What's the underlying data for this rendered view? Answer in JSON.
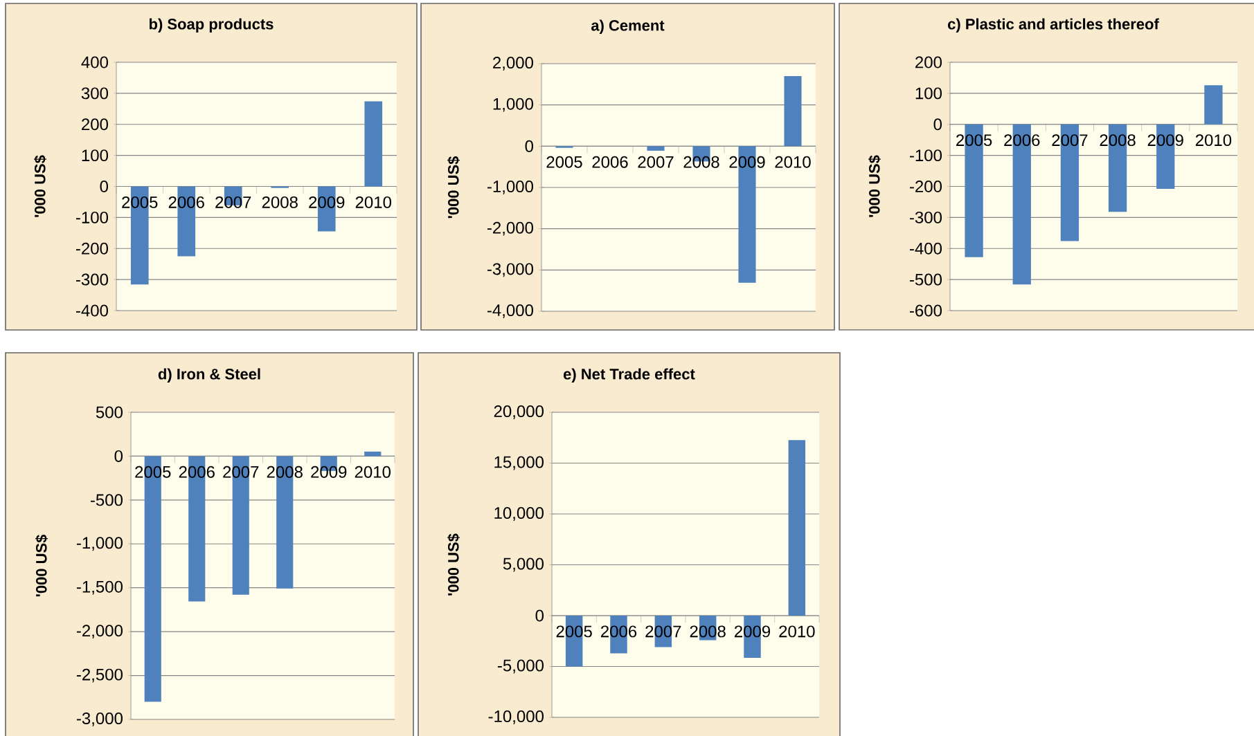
{
  "chart_data": [
    {
      "type": "bar",
      "title": "b) Soap products",
      "ylabel": "'000 US$",
      "categories": [
        "2005",
        "2006",
        "2007",
        "2008",
        "2009",
        "2010"
      ],
      "values": [
        -316,
        -225,
        -61,
        -5,
        -145,
        274
      ],
      "color": "#4f81bd",
      "ylim": [
        -400,
        400
      ],
      "yticks": [
        -400,
        -300,
        -200,
        -100,
        0,
        100,
        200,
        300,
        400
      ],
      "grid": "y"
    },
    {
      "type": "bar",
      "title": "a) Cement",
      "ylabel": "'000 US$",
      "categories": [
        "2005",
        "2006",
        "2007",
        "2008",
        "2009",
        "2010"
      ],
      "values": [
        -40,
        0,
        -110,
        -370,
        -3310,
        1700
      ],
      "color": "#4f81bd",
      "ylim": [
        -4000,
        2000
      ],
      "yticks": [
        {
          "value": -4000,
          "label": "-4,000"
        },
        {
          "value": -3000,
          "label": "-3,000"
        },
        {
          "value": -2000,
          "label": "-2,000"
        },
        {
          "value": -1000,
          "label": "-1,000"
        },
        0,
        {
          "value": 1000,
          "label": "1,000"
        },
        {
          "value": 2000,
          "label": "2,000"
        }
      ],
      "grid": "y"
    },
    {
      "type": "bar",
      "title": "c) Plastic  and articles thereof",
      "ylabel": "'000 US$",
      "categories": [
        "2005",
        "2006",
        "2007",
        "2008",
        "2009",
        "2010"
      ],
      "values": [
        -428,
        -516,
        -376,
        -282,
        -208,
        126
      ],
      "color": "#4f81bd",
      "ylim": [
        -600,
        200
      ],
      "yticks": [
        -600,
        -500,
        -400,
        -300,
        -200,
        -100,
        0,
        100,
        200
      ],
      "grid": "y"
    },
    {
      "type": "bar",
      "title": "d) Iron & Steel",
      "ylabel": "'000 US$",
      "categories": [
        "2005",
        "2006",
        "2007",
        "2008",
        "2009",
        "2010"
      ],
      "values": [
        -2800,
        -1656,
        -1580,
        -1509,
        -169,
        52
      ],
      "color": "#4f81bd",
      "ylim": [
        -3000,
        500
      ],
      "yticks": [
        {
          "value": -3000,
          "label": "-3,000"
        },
        {
          "value": -2500,
          "label": "-2,500"
        },
        {
          "value": -2000,
          "label": "-2,000"
        },
        {
          "value": -1500,
          "label": "-1,500"
        },
        {
          "value": -1000,
          "label": "-1,000"
        },
        -500,
        0,
        500
      ],
      "grid": "y"
    },
    {
      "type": "bar",
      "title": "e) Net Trade effect",
      "ylabel": "'000 US$",
      "categories": [
        "2005",
        "2006",
        "2007",
        "2008",
        "2009",
        "2010"
      ],
      "values": [
        -5000,
        -3700,
        -3100,
        -2420,
        -4150,
        17260
      ],
      "color": "#4f81bd",
      "ylim": [
        -10000,
        20000
      ],
      "yticks": [
        {
          "value": -10000,
          "label": "-10,000"
        },
        {
          "value": -5000,
          "label": "-5,000"
        },
        0,
        {
          "value": 5000,
          "label": "5,000"
        },
        {
          "value": 10000,
          "label": "10,000"
        },
        {
          "value": 15000,
          "label": "15,000"
        },
        {
          "value": 20000,
          "label": "20,000"
        }
      ],
      "grid": "y"
    }
  ]
}
